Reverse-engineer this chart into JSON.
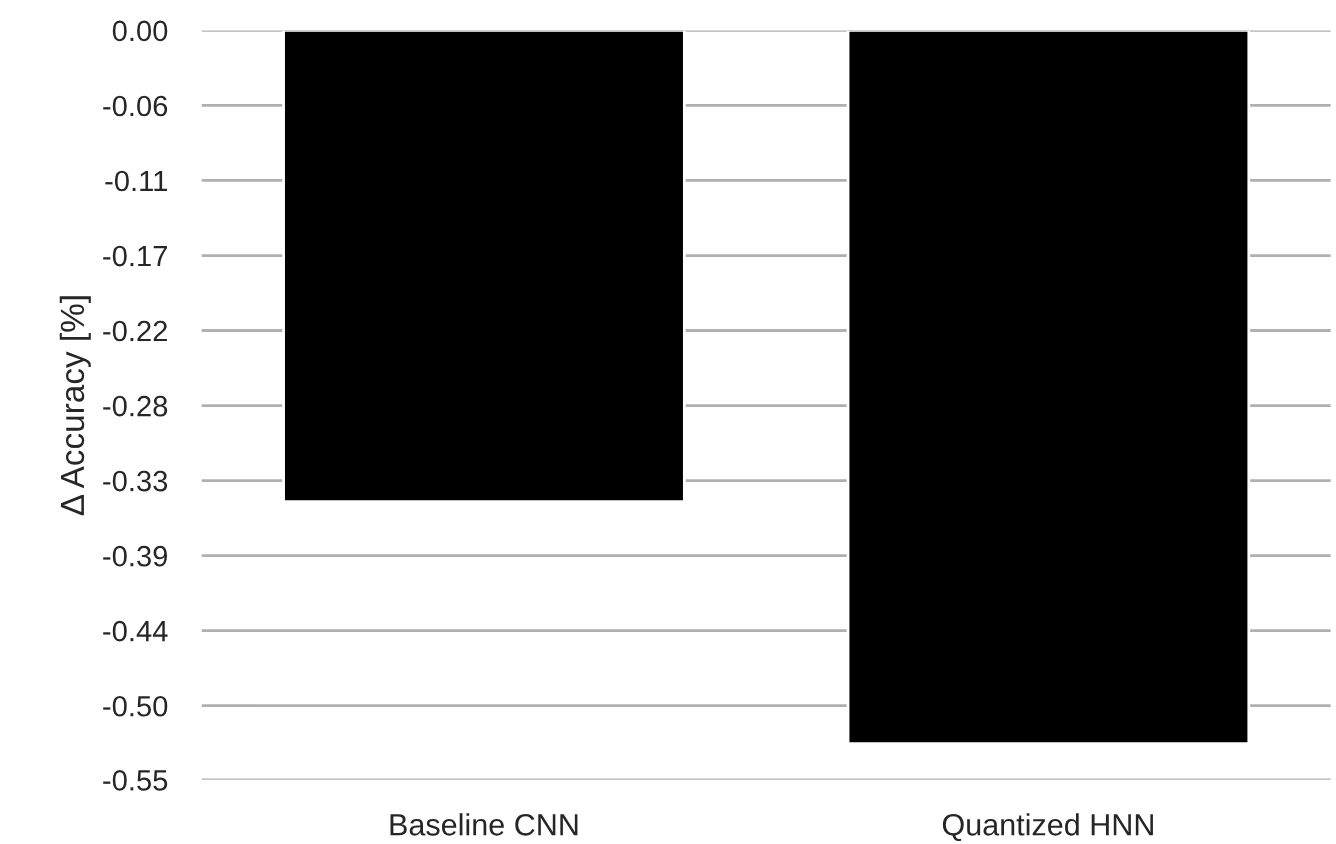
{
  "chart_data": {
    "type": "bar",
    "ylabel": "Δ Accuracy [%]",
    "categories": [
      "Baseline CNN",
      "Quantized HNN"
    ],
    "values": [
      -0.349,
      -0.528
    ],
    "color": "#000000",
    "ylim": [
      -0.5549,
      0
    ],
    "yticks": [
      {
        "value": 0,
        "label": "0.00"
      },
      {
        "value": -0.0556,
        "label": "-0.06"
      },
      {
        "value": -0.1111,
        "label": "-0.11"
      },
      {
        "value": -0.1667,
        "label": "-0.17"
      },
      {
        "value": -0.2222,
        "label": "-0.22"
      },
      {
        "value": -0.2778,
        "label": "-0.28"
      },
      {
        "value": -0.3333,
        "label": "-0.33"
      },
      {
        "value": -0.3889,
        "label": "-0.39"
      },
      {
        "value": -0.4444,
        "label": "-0.44"
      },
      {
        "value": -0.5,
        "label": "-0.50"
      },
      {
        "value": -0.5549,
        "label": "-0.55"
      }
    ],
    "grid": "y",
    "legend": false
  }
}
